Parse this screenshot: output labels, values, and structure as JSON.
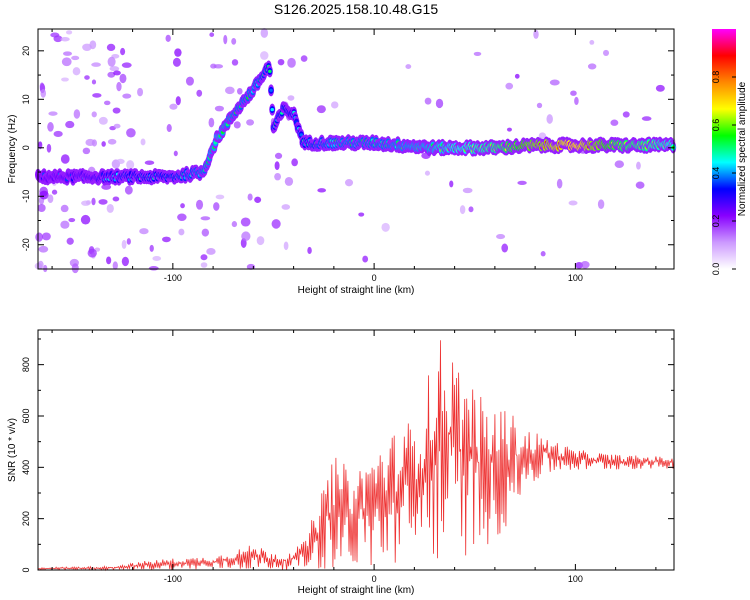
{
  "title": "S126.2025.158.10.48.G15",
  "chart_data": [
    {
      "type": "heatmap",
      "xlabel": "Height of straight line (km)",
      "ylabel": "Frequency (Hz)",
      "xlim": [
        -167,
        149
      ],
      "ylim": [
        -25,
        24.5
      ],
      "xticks": [
        -100,
        0,
        100
      ],
      "yticks": [
        -20,
        -10,
        0,
        10,
        20
      ],
      "colorbar": {
        "label": "Normalized spectral amplitude",
        "range": [
          0.0,
          1.0
        ],
        "ticks": [
          0.0,
          0.2,
          0.4,
          0.6,
          0.8
        ],
        "colors": [
          "#ffffff",
          "#cc99ff",
          "#8800ff",
          "#0000ff",
          "#00ffff",
          "#00ff00",
          "#ffff00",
          "#ff8800",
          "#ff0000",
          "#ff00ff"
        ]
      },
      "ridge": [
        {
          "x": -167,
          "f": -6,
          "a": 0.3
        },
        {
          "x": -140,
          "f": -6,
          "a": 0.35
        },
        {
          "x": -125,
          "f": -6,
          "a": 0.4
        },
        {
          "x": -100,
          "f": -6,
          "a": 0.45
        },
        {
          "x": -85,
          "f": -5,
          "a": 0.5
        },
        {
          "x": -78,
          "f": 2,
          "a": 0.55
        },
        {
          "x": -68,
          "f": 8,
          "a": 0.5
        },
        {
          "x": -60,
          "f": 12,
          "a": 0.5
        },
        {
          "x": -52,
          "f": 17,
          "a": 0.45
        },
        {
          "x": -50,
          "f": 4,
          "a": 0.45
        },
        {
          "x": -45,
          "f": 8,
          "a": 0.45
        },
        {
          "x": -40,
          "f": 7,
          "a": 0.4
        },
        {
          "x": -35,
          "f": 1,
          "a": 0.45
        },
        {
          "x": -20,
          "f": 1,
          "a": 0.5
        },
        {
          "x": 0,
          "f": 1,
          "a": 0.5
        },
        {
          "x": 30,
          "f": 0,
          "a": 0.55
        },
        {
          "x": 60,
          "f": 0,
          "a": 0.65
        },
        {
          "x": 80,
          "f": 0.5,
          "a": 0.8
        },
        {
          "x": 100,
          "f": 0.5,
          "a": 0.9
        },
        {
          "x": 120,
          "f": 0.5,
          "a": 0.7
        },
        {
          "x": 149,
          "f": 0.5,
          "a": 0.6
        }
      ]
    },
    {
      "type": "line",
      "xlabel": "Height of straight line (km)",
      "ylabel": "SNR (10 * v/v)",
      "xlim": [
        -167,
        149
      ],
      "ylim": [
        0,
        935
      ],
      "xticks": [
        -100,
        0,
        100
      ],
      "yticks": [
        0,
        200,
        400,
        600,
        800
      ],
      "color": "#ee3333",
      "envelope": [
        {
          "x": -167,
          "lo": 0,
          "hi": 10
        },
        {
          "x": -130,
          "lo": 0,
          "hi": 15
        },
        {
          "x": -110,
          "lo": 0,
          "hi": 40
        },
        {
          "x": -80,
          "lo": 0,
          "hi": 55
        },
        {
          "x": -60,
          "lo": 0,
          "hi": 100
        },
        {
          "x": -45,
          "lo": 0,
          "hi": 60
        },
        {
          "x": -35,
          "lo": 0,
          "hi": 110
        },
        {
          "x": -28,
          "lo": 0,
          "hi": 260
        },
        {
          "x": -20,
          "lo": 0,
          "hi": 450
        },
        {
          "x": -10,
          "lo": 0,
          "hi": 380
        },
        {
          "x": 0,
          "lo": 0,
          "hi": 480
        },
        {
          "x": 20,
          "lo": 20,
          "hi": 600
        },
        {
          "x": 34,
          "lo": 30,
          "hi": 935
        },
        {
          "x": 42,
          "lo": 40,
          "hi": 820
        },
        {
          "x": 55,
          "lo": 80,
          "hi": 650
        },
        {
          "x": 65,
          "lo": 150,
          "hi": 640
        },
        {
          "x": 75,
          "lo": 300,
          "hi": 560
        },
        {
          "x": 85,
          "lo": 370,
          "hi": 520
        },
        {
          "x": 100,
          "lo": 385,
          "hi": 470
        },
        {
          "x": 120,
          "lo": 390,
          "hi": 450
        },
        {
          "x": 149,
          "lo": 395,
          "hi": 440
        }
      ]
    }
  ]
}
